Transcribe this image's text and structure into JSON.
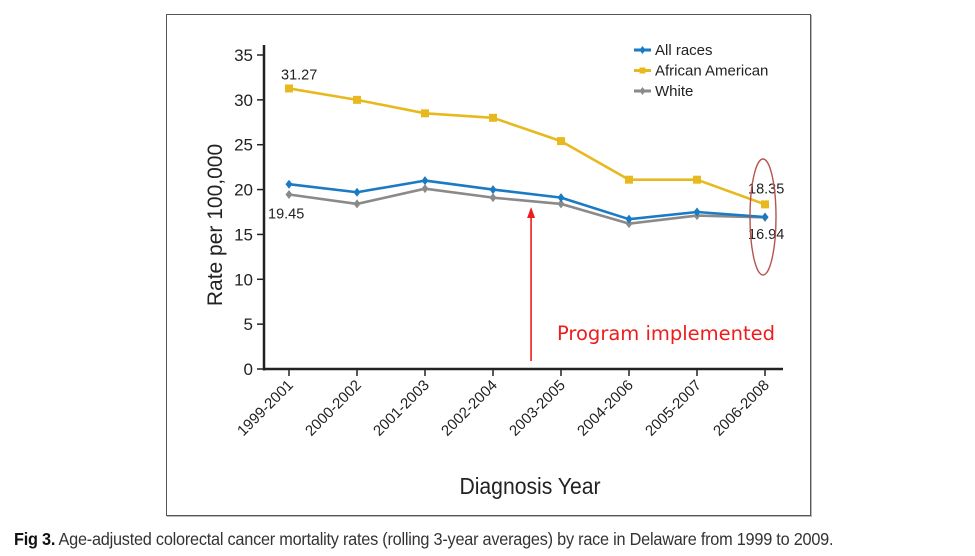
{
  "chart_data": {
    "type": "line",
    "title": "",
    "xlabel": "Diagnosis Year",
    "ylabel": "Rate per 100,000",
    "ylim": [
      0,
      35
    ],
    "yticks": [
      0,
      5,
      10,
      15,
      20,
      25,
      30,
      35
    ],
    "grid": false,
    "legend_position": "top-right",
    "categories": [
      "1999-2001",
      "2000-2002",
      "2001-2003",
      "2002-2004",
      "2003-2005",
      "2004-2006",
      "2005-2007",
      "2006-2008"
    ],
    "series": [
      {
        "name": "All races",
        "color": "#1a7ac4",
        "marker": "diamond",
        "values": [
          20.6,
          19.7,
          21.0,
          20.0,
          19.1,
          16.7,
          17.5,
          16.94
        ]
      },
      {
        "name": "African American",
        "color": "#e8b91e",
        "marker": "square",
        "values": [
          31.27,
          30.0,
          28.5,
          28.0,
          25.4,
          21.1,
          21.1,
          18.35
        ]
      },
      {
        "name": "White",
        "color": "#8a8a8a",
        "marker": "diamond",
        "values": [
          19.45,
          18.4,
          20.1,
          19.1,
          18.4,
          16.2,
          17.1,
          16.9
        ]
      }
    ],
    "data_labels": [
      {
        "series": "African American",
        "category": "1999-2001",
        "text": "31.27"
      },
      {
        "series": "White",
        "category": "1999-2001",
        "text": "19.45"
      },
      {
        "series": "African American",
        "category": "2006-2008",
        "text": "18.35"
      },
      {
        "series": "All races",
        "category": "2006-2008",
        "text": "16.94"
      }
    ],
    "annotations": [
      {
        "type": "arrow",
        "text": "Program implemented",
        "x_between": [
          "2002-2004",
          "2003-2005"
        ],
        "color": "#ee1c1c"
      },
      {
        "type": "ellipse",
        "highlight_category": "2006-2008",
        "color": "#b5544f"
      }
    ]
  },
  "caption": {
    "label": "Fig 3.",
    "text": " Age-adjusted colorectal cancer mortality rates (rolling 3-year averages) by race in Delaware from 1999 to 2009."
  }
}
